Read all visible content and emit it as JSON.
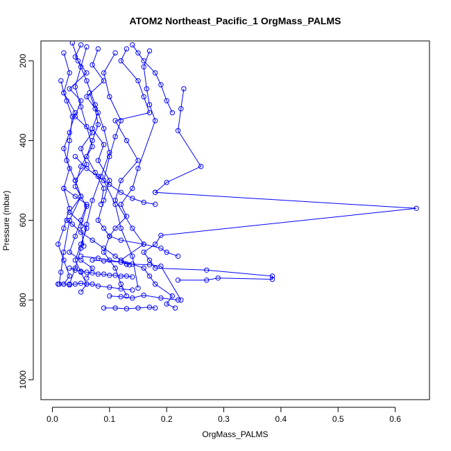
{
  "chart_data": {
    "type": "line",
    "title": "ATOM2 Northeast_Pacific_1 OrgMass_PALMS",
    "xlabel": "OrgMass_PALMS",
    "ylabel": "Pressure (mbar)",
    "xlim": [
      -0.02,
      0.66
    ],
    "ylim": [
      1050,
      150
    ],
    "y_reversed": true,
    "x_ticks": [
      0.0,
      0.1,
      0.2,
      0.3,
      0.4,
      0.5,
      0.6
    ],
    "y_ticks": [
      200,
      400,
      600,
      800,
      1000
    ],
    "color": "#0000ff",
    "marker": "open-circle",
    "grid": false,
    "series": [
      {
        "x": [
          0.13,
          0.12,
          0.15,
          0.16,
          0.17,
          0.11,
          0.13,
          0.15,
          0.12,
          0.11,
          0.14,
          0.16,
          0.12,
          0.16,
          0.17,
          0.18,
          0.21,
          0.2,
          0.215
        ],
        "y": [
          170,
          200,
          250,
          290,
          330,
          350,
          400,
          450,
          500,
          550,
          620,
          660,
          700,
          720,
          740,
          760,
          790,
          810,
          820
        ]
      },
      {
        "x": [
          0.23,
          0.225,
          0.22,
          0.26,
          0.2,
          0.18,
          0.18,
          0.637,
          0.19,
          0.18,
          0.16,
          0.17,
          0.18,
          0.27,
          0.385,
          0.385,
          0.29,
          0.27,
          0.22
        ],
        "y": [
          270,
          320,
          375,
          465,
          505,
          530,
          530,
          570,
          638,
          660,
          680,
          700,
          720,
          725,
          740,
          748,
          745,
          750,
          750
        ]
      },
      {
        "x": [
          0.05,
          0.04,
          0.06,
          0.03,
          0.05,
          0.04,
          0.07,
          0.05,
          0.06,
          0.04,
          0.05,
          0.03,
          0.06,
          0.05,
          0.04,
          0.05,
          0.06,
          0.05
        ],
        "y": [
          160,
          190,
          230,
          270,
          300,
          340,
          380,
          420,
          460,
          500,
          540,
          580,
          620,
          660,
          700,
          730,
          760,
          780
        ]
      },
      {
        "x": [
          0.08,
          0.07,
          0.09,
          0.06,
          0.08,
          0.07,
          0.09,
          0.08,
          0.1,
          0.09,
          0.08,
          0.1,
          0.09,
          0.11,
          0.12,
          0.13
        ],
        "y": [
          170,
          210,
          250,
          290,
          330,
          370,
          410,
          450,
          500,
          550,
          600,
          640,
          680,
          720,
          760,
          790
        ]
      },
      {
        "x": [
          0.02,
          0.03,
          0.02,
          0.04,
          0.03,
          0.02,
          0.03,
          0.02,
          0.03,
          0.02,
          0.01,
          0.02,
          0.03,
          0.02
        ],
        "y": [
          180,
          230,
          280,
          330,
          380,
          420,
          470,
          520,
          570,
          620,
          660,
          700,
          740,
          760
        ]
      },
      {
        "x": [
          0.17,
          0.16,
          0.165,
          0.17,
          0.18,
          0.15,
          0.14,
          0.12,
          0.13,
          0.11,
          0.1
        ],
        "y": [
          175,
          215,
          270,
          310,
          350,
          470,
          520,
          560,
          590,
          620,
          640
        ]
      },
      {
        "x": [
          0.035,
          0.045,
          0.06,
          0.075,
          0.09,
          0.1,
          0.085,
          0.07,
          0.06,
          0.05,
          0.04,
          0.03
        ],
        "y": [
          155,
          200,
          250,
          310,
          370,
          430,
          490,
          550,
          610,
          670,
          720,
          760
        ]
      },
      {
        "x": [
          0.11,
          0.09,
          0.1,
          0.12,
          0.11,
          0.1,
          0.09,
          0.11,
          0.12,
          0.14,
          0.15
        ],
        "y": [
          180,
          230,
          290,
          350,
          390,
          440,
          500,
          560,
          620,
          690,
          770
        ]
      },
      {
        "x": [
          0.015,
          0.02,
          0.025,
          0.035,
          0.03,
          0.025,
          0.04,
          0.05,
          0.03,
          0.02,
          0.015,
          0.012
        ],
        "y": [
          250,
          280,
          300,
          340,
          400,
          450,
          500,
          540,
          600,
          680,
          730,
          760
        ]
      },
      {
        "x": [
          0.06,
          0.05,
          0.04,
          0.05,
          0.06,
          0.07,
          0.05,
          0.04,
          0.06,
          0.05,
          0.055
        ],
        "y": [
          165,
          215,
          265,
          315,
          365,
          415,
          465,
          515,
          565,
          615,
          665
        ]
      },
      {
        "x": [
          0.03,
          0.04,
          0.05,
          0.06,
          0.07,
          0.08,
          0.09,
          0.1,
          0.11,
          0.12,
          0.13,
          0.14
        ],
        "y": [
          720,
          725,
          728,
          730,
          732,
          735,
          735,
          738,
          738,
          740,
          740,
          742
        ]
      },
      {
        "x": [
          0.01,
          0.02,
          0.03,
          0.04,
          0.05,
          0.06,
          0.07,
          0.08,
          0.1,
          0.12,
          0.14
        ],
        "y": [
          760,
          760,
          762,
          760,
          758,
          760,
          760,
          765,
          768,
          772,
          775
        ]
      },
      {
        "x": [
          0.09,
          0.11,
          0.13,
          0.15,
          0.17,
          0.18
        ],
        "y": [
          820,
          820,
          822,
          820,
          818,
          820
        ]
      },
      {
        "x": [
          0.1,
          0.12,
          0.14,
          0.16,
          0.19,
          0.22
        ],
        "y": [
          790,
          792,
          795,
          788,
          795,
          800
        ]
      },
      {
        "x": [
          0.07,
          0.09,
          0.12,
          0.14,
          0.17,
          0.19,
          0.225
        ],
        "y": [
          700,
          702,
          705,
          710,
          712,
          715,
          800
        ]
      },
      {
        "x": [
          0.05,
          0.08,
          0.1,
          0.12,
          0.13,
          0.135
        ],
        "y": [
          690,
          695,
          700,
          705,
          710,
          712
        ]
      },
      {
        "x": [
          0.09,
          0.1,
          0.12,
          0.16,
          0.19,
          0.2,
          0.22
        ],
        "y": [
          620,
          640,
          650,
          660,
          670,
          680,
          690
        ]
      },
      {
        "x": [
          0.04,
          0.06,
          0.08,
          0.1,
          0.12,
          0.14,
          0.16,
          0.18
        ],
        "y": [
          440,
          470,
          490,
          510,
          530,
          545,
          555,
          560
        ]
      },
      {
        "x": [
          0.025,
          0.035,
          0.05,
          0.07,
          0.09,
          0.11,
          0.13
        ],
        "y": [
          600,
          610,
          630,
          650,
          670,
          690,
          710
        ]
      },
      {
        "x": [
          0.14,
          0.15,
          0.16,
          0.18,
          0.19,
          0.2,
          0.21
        ],
        "y": [
          160,
          180,
          200,
          230,
          260,
          300,
          330
        ]
      },
      {
        "x": [
          0.02,
          0.04,
          0.06,
          0.05,
          0.04,
          0.03,
          0.05,
          0.07,
          0.06
        ],
        "y": [
          520,
          540,
          560,
          600,
          640,
          680,
          700,
          720,
          745
        ]
      },
      {
        "x": [
          0.065,
          0.075,
          0.08,
          0.07,
          0.06,
          0.075,
          0.09,
          0.085
        ],
        "y": [
          280,
          320,
          360,
          400,
          440,
          480,
          520,
          560
        ]
      }
    ]
  }
}
